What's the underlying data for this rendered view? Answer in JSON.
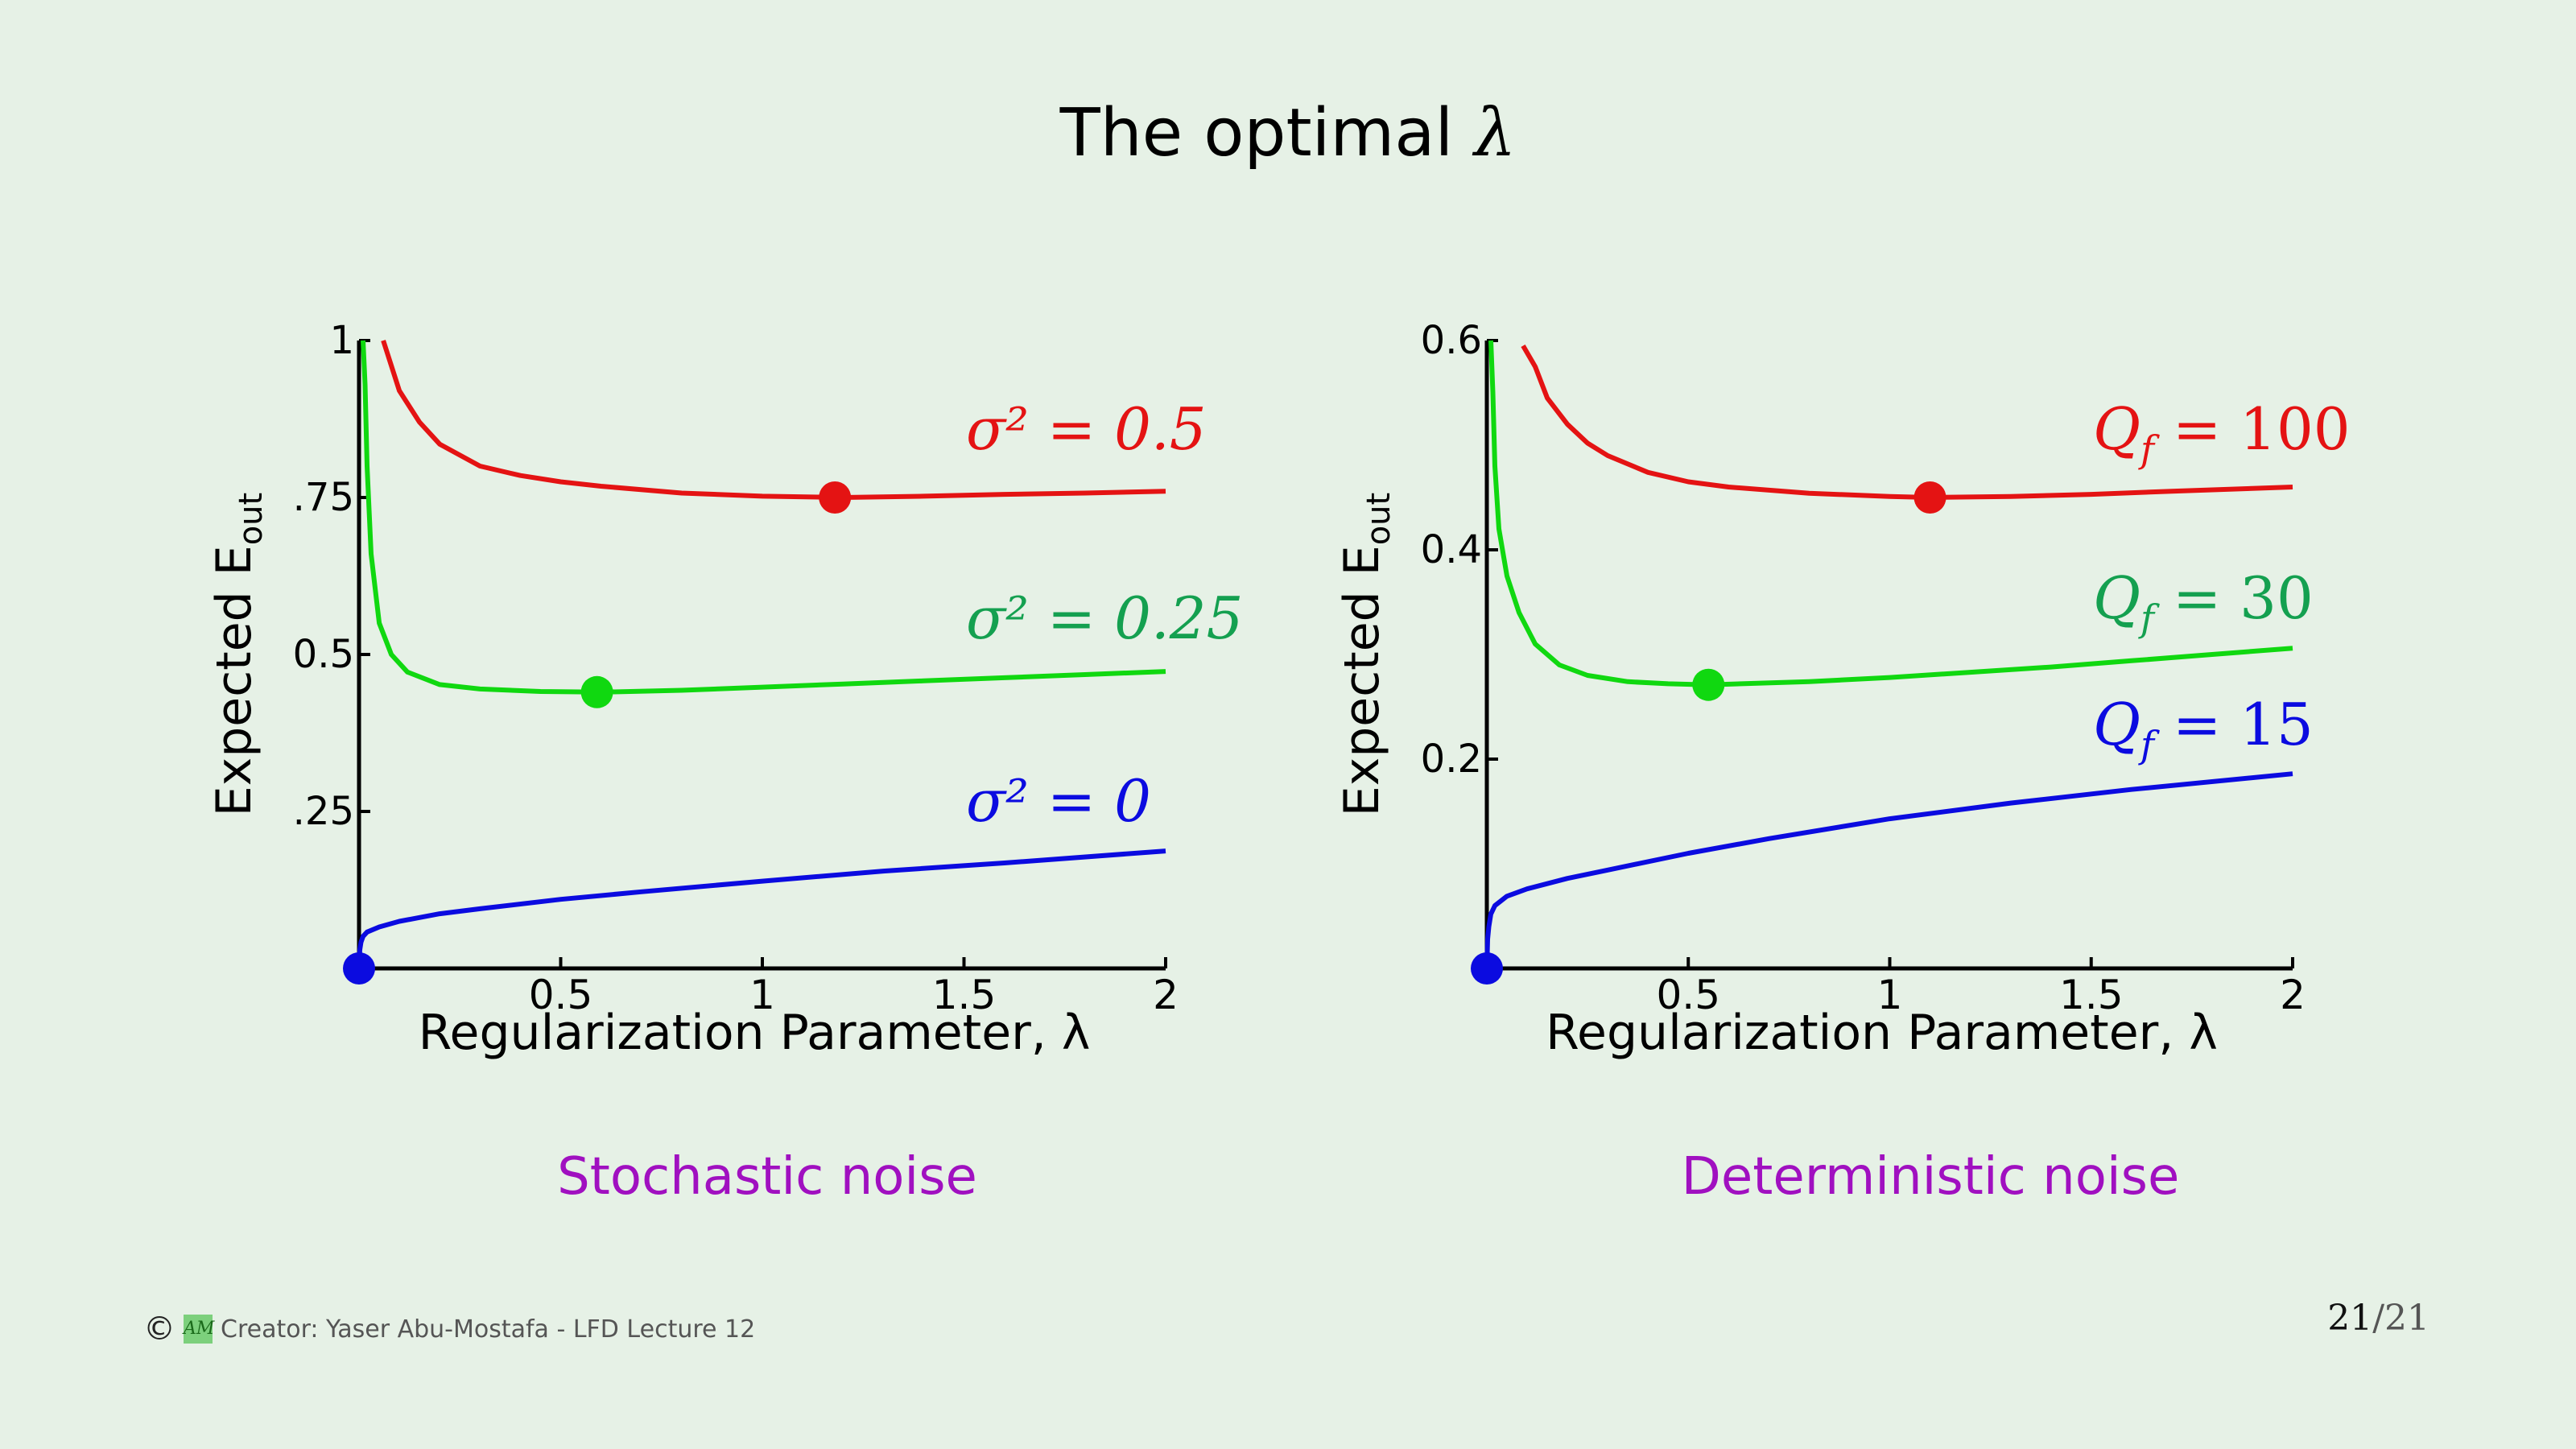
{
  "slide": {
    "title_text": "The optimal ",
    "title_symbol": "λ",
    "footer_credit": "Creator: Yaser Abu-Mostafa - LFD Lecture 12",
    "logo_text": "AM",
    "copyright_symbol": "©",
    "page_current": "21",
    "page_total": "/21"
  },
  "chart_data": [
    {
      "type": "line",
      "caption": "Stochastic noise",
      "xlabel": "Regularization Parameter, λ",
      "ylabel": "Expected E",
      "ylabel_sub": "out",
      "xlim": [
        0,
        2
      ],
      "ylim": [
        0,
        1
      ],
      "xticks": [
        0.5,
        1,
        1.5,
        2
      ],
      "xtick_labels": [
        "0.5",
        "1",
        "1.5",
        "2"
      ],
      "yticks": [
        0.25,
        0.5,
        0.75,
        1
      ],
      "ytick_labels": [
        ".25",
        "0.5",
        ".75",
        "1"
      ],
      "series": [
        {
          "name": "σ² = 0.5",
          "color": "#e41313",
          "x": [
            0.06,
            0.08,
            0.1,
            0.15,
            0.2,
            0.3,
            0.4,
            0.5,
            0.6,
            0.8,
            1.0,
            1.2,
            1.4,
            1.6,
            1.8,
            2.0
          ],
          "y": [
            1.0,
            0.96,
            0.92,
            0.87,
            0.835,
            0.8,
            0.785,
            0.775,
            0.768,
            0.757,
            0.752,
            0.75,
            0.752,
            0.755,
            0.757,
            0.76
          ],
          "optimum": [
            1.18,
            0.75
          ]
        },
        {
          "name": "σ² = 0.25",
          "color": "#10d810",
          "label_color": "#14a050",
          "x": [
            0.01,
            0.015,
            0.02,
            0.03,
            0.05,
            0.08,
            0.12,
            0.2,
            0.3,
            0.45,
            0.6,
            0.8,
            1.0,
            1.2,
            1.4,
            1.6,
            1.8,
            2.0
          ],
          "y": [
            1.0,
            0.93,
            0.8,
            0.66,
            0.55,
            0.5,
            0.472,
            0.452,
            0.445,
            0.441,
            0.44,
            0.443,
            0.448,
            0.453,
            0.458,
            0.463,
            0.468,
            0.473
          ],
          "optimum": [
            0.59,
            0.44
          ]
        },
        {
          "name": "σ² = 0",
          "color": "#0b0be0",
          "x": [
            0,
            0.002,
            0.005,
            0.01,
            0.02,
            0.05,
            0.1,
            0.2,
            0.3,
            0.5,
            0.7,
            1.0,
            1.3,
            1.6,
            2.0
          ],
          "y": [
            0,
            0.03,
            0.042,
            0.051,
            0.058,
            0.066,
            0.075,
            0.087,
            0.095,
            0.11,
            0.122,
            0.139,
            0.155,
            0.168,
            0.187
          ],
          "optimum": [
            0,
            0
          ]
        }
      ]
    },
    {
      "type": "line",
      "caption": "Deterministic noise",
      "xlabel": "Regularization Parameter, λ",
      "ylabel": "Expected E",
      "ylabel_sub": "out",
      "xlim": [
        0,
        2
      ],
      "ylim": [
        0,
        0.6
      ],
      "xticks": [
        0.5,
        1,
        1.5,
        2
      ],
      "xtick_labels": [
        "0.5",
        "1",
        "1.5",
        "2"
      ],
      "yticks": [
        0.2,
        0.4,
        0.6
      ],
      "ytick_labels": [
        "0.2",
        "0.4",
        "0.6"
      ],
      "series": [
        {
          "name": "Qf = 100",
          "name_main": "Q",
          "name_sub": "f",
          "name_rest": " = 100",
          "color": "#e41313",
          "x": [
            0.09,
            0.12,
            0.15,
            0.2,
            0.25,
            0.3,
            0.4,
            0.5,
            0.6,
            0.8,
            1.0,
            1.1,
            1.3,
            1.5,
            1.7,
            2.0
          ],
          "y": [
            0.595,
            0.575,
            0.545,
            0.52,
            0.502,
            0.49,
            0.474,
            0.465,
            0.46,
            0.454,
            0.451,
            0.45,
            0.451,
            0.453,
            0.456,
            0.46
          ],
          "optimum": [
            1.1,
            0.45
          ]
        },
        {
          "name": "Qf = 30",
          "name_main": "Q",
          "name_sub": "f",
          "name_rest": " = 30",
          "color": "#10d810",
          "label_color": "#14a050",
          "x": [
            0.01,
            0.015,
            0.02,
            0.03,
            0.05,
            0.08,
            0.12,
            0.18,
            0.25,
            0.35,
            0.45,
            0.55,
            0.8,
            1.0,
            1.2,
            1.4,
            1.6,
            1.8,
            2.0
          ],
          "y": [
            0.6,
            0.55,
            0.48,
            0.42,
            0.375,
            0.34,
            0.31,
            0.29,
            0.28,
            0.274,
            0.272,
            0.271,
            0.274,
            0.278,
            0.283,
            0.288,
            0.294,
            0.3,
            0.306
          ],
          "optimum": [
            0.55,
            0.271
          ]
        },
        {
          "name": "Qf = 15",
          "name_main": "Q",
          "name_sub": "f",
          "name_rest": " = 15",
          "color": "#0b0be0",
          "x": [
            0,
            0.002,
            0.005,
            0.01,
            0.02,
            0.05,
            0.1,
            0.2,
            0.3,
            0.5,
            0.7,
            1.0,
            1.3,
            1.6,
            2.0
          ],
          "y": [
            0,
            0.028,
            0.04,
            0.052,
            0.06,
            0.069,
            0.076,
            0.086,
            0.094,
            0.11,
            0.124,
            0.143,
            0.158,
            0.171,
            0.186
          ],
          "optimum": [
            0,
            0
          ]
        }
      ]
    }
  ]
}
